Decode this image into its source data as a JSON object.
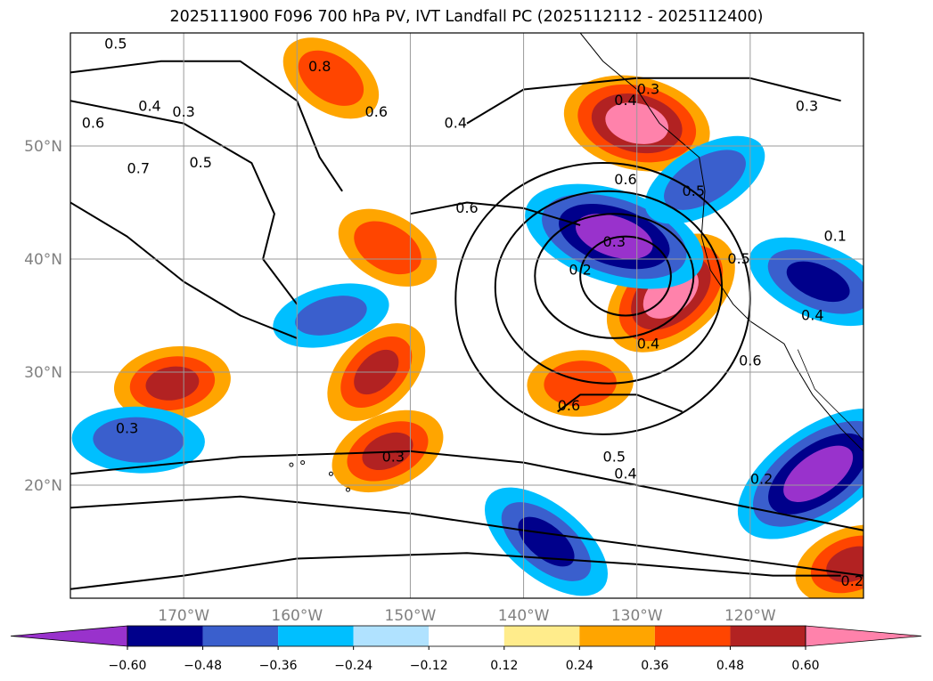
{
  "title": "2025111900 F096 700 hPa PV, IVT Landfall PC (2025112112 - 2025112400)",
  "chart_data": {
    "type": "contour_map",
    "title": "2025111900 F096 700 hPa PV, IVT Landfall PC (2025112112 - 2025112400)",
    "x_axis": {
      "label": "",
      "range_lon": [
        -180,
        -110
      ],
      "ticks": [
        -170,
        -160,
        -150,
        -140,
        -130,
        -120
      ],
      "tick_labels": [
        "170°W",
        "160°W",
        "150°W",
        "140°W",
        "130°W",
        "120°W"
      ]
    },
    "y_axis": {
      "label": "",
      "range_lat": [
        10,
        60
      ],
      "ticks": [
        20,
        30,
        40,
        50
      ],
      "tick_labels": [
        "20°N",
        "30°N",
        "40°N",
        "50°N"
      ]
    },
    "grid": true,
    "filled_field": {
      "name": "IVT Landfall PC correlation",
      "levels": [
        -0.72,
        -0.6,
        -0.48,
        -0.36,
        -0.24,
        -0.12,
        0.12,
        0.24,
        0.36,
        0.48,
        0.6,
        0.72
      ],
      "colors": [
        "#9932cc",
        "#00008b",
        "#3a5fcd",
        "#00bfff",
        "#b0e2ff",
        "#ffffff",
        "#ffec8b",
        "#ffa500",
        "#ff4500",
        "#b22222",
        "#ff82ab"
      ],
      "colorbar_ticks": [
        "−0.60",
        "−0.48",
        "−0.36",
        "−0.24",
        "−0.12",
        "0.12",
        "0.24",
        "0.36",
        "0.48",
        "0.60"
      ],
      "extend": "both",
      "regions": [
        {
          "sign": "positive",
          "lon": -153,
          "lat": 30,
          "peak": 0.5
        },
        {
          "sign": "positive",
          "lon": -171,
          "lat": 29,
          "peak": 0.5
        },
        {
          "sign": "positive",
          "lon": -152,
          "lat": 41,
          "peak": 0.45
        },
        {
          "sign": "positive",
          "lon": -152,
          "lat": 23,
          "peak": 0.5
        },
        {
          "sign": "positive",
          "lon": -130,
          "lat": 52,
          "peak": 0.65
        },
        {
          "sign": "positive",
          "lon": -127,
          "lat": 37,
          "peak": 0.65
        },
        {
          "sign": "positive",
          "lon": -135,
          "lat": 29,
          "peak": 0.45
        },
        {
          "sign": "positive",
          "lon": -157,
          "lat": 56,
          "peak": 0.45
        },
        {
          "sign": "positive",
          "lon": -111,
          "lat": 13,
          "peak": 0.5
        },
        {
          "sign": "negative",
          "lon": -132,
          "lat": 42,
          "peak": -0.65
        },
        {
          "sign": "negative",
          "lon": -114,
          "lat": 21,
          "peak": -0.65
        },
        {
          "sign": "negative",
          "lon": -174,
          "lat": 24,
          "peak": -0.45
        },
        {
          "sign": "negative",
          "lon": -138,
          "lat": 15,
          "peak": -0.5
        },
        {
          "sign": "negative",
          "lon": -157,
          "lat": 35,
          "peak": -0.4
        },
        {
          "sign": "negative",
          "lon": -114,
          "lat": 38,
          "peak": -0.5
        },
        {
          "sign": "negative",
          "lon": -124,
          "lat": 47,
          "peak": -0.45
        }
      ]
    },
    "contours": {
      "name": "700 hPa PV",
      "color": "#000000",
      "labels": [
        {
          "text": "0.3",
          "lon": -129,
          "lat": 55
        },
        {
          "text": "0.3",
          "lon": -115,
          "lat": 53.5
        },
        {
          "text": "0.4",
          "lon": -131,
          "lat": 54
        },
        {
          "text": "0.4",
          "lon": -146,
          "lat": 52
        },
        {
          "text": "0.6",
          "lon": -153,
          "lat": 53
        },
        {
          "text": "0.8",
          "lon": -158,
          "lat": 57
        },
        {
          "text": "0.6",
          "lon": -178,
          "lat": 52
        },
        {
          "text": "0.4",
          "lon": -173,
          "lat": 53.5
        },
        {
          "text": "0.3",
          "lon": -170,
          "lat": 53
        },
        {
          "text": "0.5",
          "lon": -176,
          "lat": 59
        },
        {
          "text": "0.5",
          "lon": -168.5,
          "lat": 48.5
        },
        {
          "text": "0.7",
          "lon": -174,
          "lat": 48
        },
        {
          "text": "0.6",
          "lon": -145,
          "lat": 44.5
        },
        {
          "text": "0.6",
          "lon": -131,
          "lat": 47
        },
        {
          "text": "0.5",
          "lon": -125,
          "lat": 46
        },
        {
          "text": "0.5",
          "lon": -121,
          "lat": 40
        },
        {
          "text": "0.3",
          "lon": -132,
          "lat": 41.5
        },
        {
          "text": "0.2",
          "lon": -135,
          "lat": 39
        },
        {
          "text": "0.4",
          "lon": -129,
          "lat": 32.5
        },
        {
          "text": "0.6",
          "lon": -120,
          "lat": 31
        },
        {
          "text": "0.4",
          "lon": -114.5,
          "lat": 35
        },
        {
          "text": "0.1",
          "lon": -112.5,
          "lat": 42
        },
        {
          "text": "0.6",
          "lon": -136,
          "lat": 27
        },
        {
          "text": "0.5",
          "lon": -132,
          "lat": 22.5
        },
        {
          "text": "0.4",
          "lon": -131,
          "lat": 21
        },
        {
          "text": "0.3",
          "lon": -151.5,
          "lat": 22.5
        },
        {
          "text": "0.3",
          "lon": -175,
          "lat": 25
        },
        {
          "text": "0.2",
          "lon": -119,
          "lat": 20.5
        },
        {
          "text": "0.2",
          "lon": -111,
          "lat": 11.5
        }
      ]
    }
  }
}
